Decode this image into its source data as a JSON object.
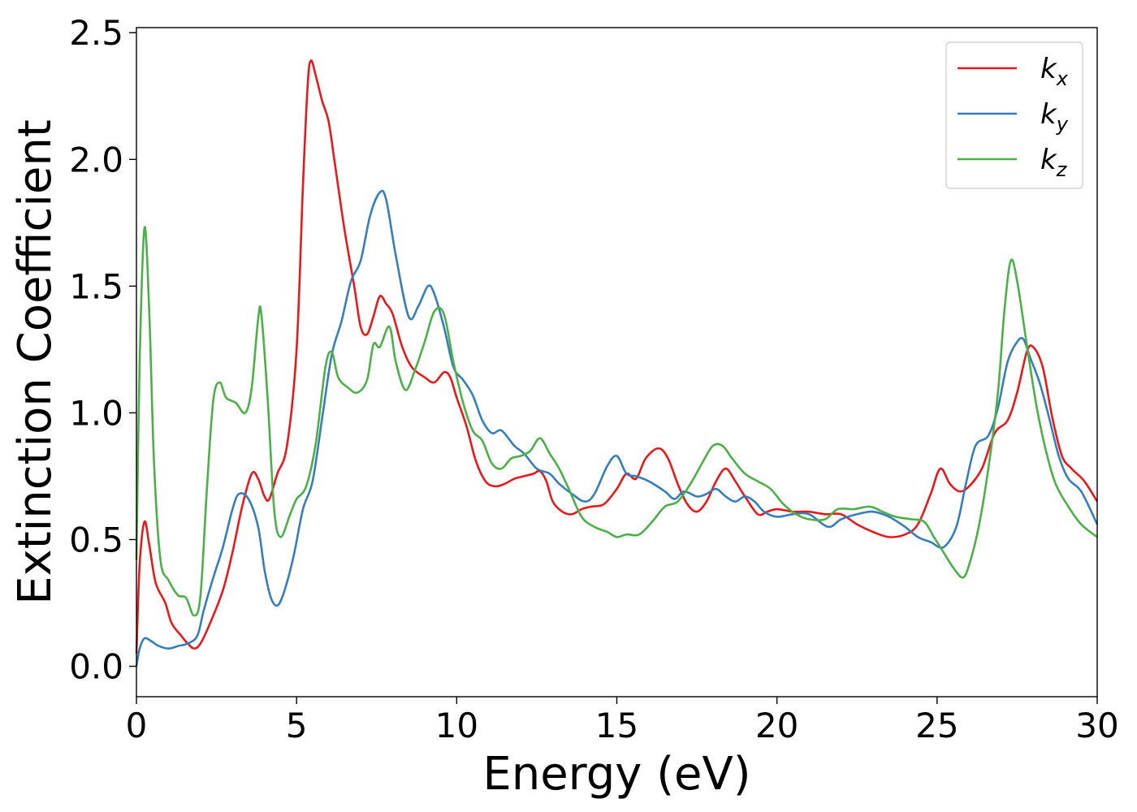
{
  "chart_data": {
    "type": "line",
    "xlabel": "Energy (eV)",
    "ylabel": "Extinction Coefficient",
    "xlim": [
      0,
      30
    ],
    "ylim": [
      -0.12,
      2.52
    ],
    "xticks": [
      0,
      5,
      10,
      15,
      20,
      25,
      30
    ],
    "xtick_labels": [
      "0",
      "5",
      "10",
      "15",
      "20",
      "25",
      "30"
    ],
    "yticks": [
      0.0,
      0.5,
      1.0,
      1.5,
      2.0,
      2.5
    ],
    "ytick_labels": [
      "0.0",
      "0.5",
      "1.0",
      "1.5",
      "2.0",
      "2.5"
    ],
    "grid": false,
    "legend_position": "top-right",
    "series": [
      {
        "name": "kx",
        "label_main": "k",
        "label_sub": "x",
        "color": "#e41a1c",
        "points": [
          [
            0,
            0.05
          ],
          [
            0.1,
            0.4
          ],
          [
            0.25,
            0.57
          ],
          [
            0.4,
            0.48
          ],
          [
            0.6,
            0.33
          ],
          [
            0.9,
            0.25
          ],
          [
            1.1,
            0.17
          ],
          [
            1.4,
            0.12
          ],
          [
            1.6,
            0.09
          ],
          [
            1.8,
            0.07
          ],
          [
            2.0,
            0.09
          ],
          [
            2.3,
            0.17
          ],
          [
            2.7,
            0.3
          ],
          [
            3.0,
            0.45
          ],
          [
            3.3,
            0.63
          ],
          [
            3.6,
            0.76
          ],
          [
            3.8,
            0.74
          ],
          [
            4.0,
            0.67
          ],
          [
            4.15,
            0.66
          ],
          [
            4.4,
            0.76
          ],
          [
            4.7,
            0.87
          ],
          [
            5.0,
            1.25
          ],
          [
            5.2,
            1.9
          ],
          [
            5.35,
            2.3
          ],
          [
            5.45,
            2.39
          ],
          [
            5.6,
            2.33
          ],
          [
            5.8,
            2.23
          ],
          [
            6.0,
            2.15
          ],
          [
            6.2,
            1.98
          ],
          [
            6.5,
            1.72
          ],
          [
            6.8,
            1.5
          ],
          [
            7.0,
            1.34
          ],
          [
            7.2,
            1.31
          ],
          [
            7.4,
            1.38
          ],
          [
            7.6,
            1.46
          ],
          [
            7.8,
            1.43
          ],
          [
            8.0,
            1.39
          ],
          [
            8.3,
            1.26
          ],
          [
            8.6,
            1.18
          ],
          [
            9.0,
            1.14
          ],
          [
            9.3,
            1.12
          ],
          [
            9.6,
            1.16
          ],
          [
            9.8,
            1.14
          ],
          [
            10.0,
            1.06
          ],
          [
            10.3,
            0.95
          ],
          [
            10.6,
            0.81
          ],
          [
            10.9,
            0.73
          ],
          [
            11.2,
            0.71
          ],
          [
            11.5,
            0.72
          ],
          [
            11.8,
            0.74
          ],
          [
            12.1,
            0.75
          ],
          [
            12.4,
            0.76
          ],
          [
            12.6,
            0.77
          ],
          [
            12.8,
            0.73
          ],
          [
            13.0,
            0.65
          ],
          [
            13.3,
            0.61
          ],
          [
            13.6,
            0.6
          ],
          [
            13.9,
            0.62
          ],
          [
            14.2,
            0.63
          ],
          [
            14.6,
            0.64
          ],
          [
            15.0,
            0.7
          ],
          [
            15.3,
            0.76
          ],
          [
            15.6,
            0.74
          ],
          [
            15.9,
            0.82
          ],
          [
            16.3,
            0.86
          ],
          [
            16.6,
            0.82
          ],
          [
            16.9,
            0.72
          ],
          [
            17.2,
            0.64
          ],
          [
            17.5,
            0.61
          ],
          [
            17.8,
            0.65
          ],
          [
            18.1,
            0.73
          ],
          [
            18.4,
            0.78
          ],
          [
            18.7,
            0.73
          ],
          [
            19.0,
            0.67
          ],
          [
            19.4,
            0.6
          ],
          [
            19.7,
            0.61
          ],
          [
            20.0,
            0.62
          ],
          [
            20.5,
            0.61
          ],
          [
            21.0,
            0.61
          ],
          [
            21.5,
            0.6
          ],
          [
            22.0,
            0.6
          ],
          [
            22.5,
            0.56
          ],
          [
            23.0,
            0.53
          ],
          [
            23.5,
            0.51
          ],
          [
            24.0,
            0.52
          ],
          [
            24.4,
            0.56
          ],
          [
            24.8,
            0.68
          ],
          [
            25.1,
            0.78
          ],
          [
            25.4,
            0.72
          ],
          [
            25.7,
            0.69
          ],
          [
            26.0,
            0.71
          ],
          [
            26.4,
            0.78
          ],
          [
            26.8,
            0.92
          ],
          [
            27.2,
            0.97
          ],
          [
            27.5,
            1.08
          ],
          [
            27.8,
            1.24
          ],
          [
            28.0,
            1.26
          ],
          [
            28.3,
            1.18
          ],
          [
            28.6,
            0.98
          ],
          [
            28.9,
            0.83
          ],
          [
            29.2,
            0.78
          ],
          [
            29.6,
            0.73
          ],
          [
            30.0,
            0.65
          ]
        ]
      },
      {
        "name": "ky",
        "label_main": "k",
        "label_sub": "y",
        "color": "#377eb8",
        "points": [
          [
            0,
            0.0
          ],
          [
            0.1,
            0.07
          ],
          [
            0.25,
            0.11
          ],
          [
            0.45,
            0.1
          ],
          [
            0.7,
            0.08
          ],
          [
            1.0,
            0.07
          ],
          [
            1.3,
            0.08
          ],
          [
            1.6,
            0.09
          ],
          [
            1.9,
            0.12
          ],
          [
            2.1,
            0.22
          ],
          [
            2.4,
            0.35
          ],
          [
            2.7,
            0.47
          ],
          [
            3.0,
            0.62
          ],
          [
            3.2,
            0.68
          ],
          [
            3.5,
            0.66
          ],
          [
            3.8,
            0.55
          ],
          [
            4.0,
            0.38
          ],
          [
            4.2,
            0.27
          ],
          [
            4.4,
            0.24
          ],
          [
            4.6,
            0.29
          ],
          [
            4.9,
            0.43
          ],
          [
            5.2,
            0.62
          ],
          [
            5.5,
            0.73
          ],
          [
            5.8,
            0.98
          ],
          [
            6.1,
            1.23
          ],
          [
            6.4,
            1.36
          ],
          [
            6.7,
            1.52
          ],
          [
            7.0,
            1.6
          ],
          [
            7.3,
            1.78
          ],
          [
            7.6,
            1.87
          ],
          [
            7.8,
            1.84
          ],
          [
            8.1,
            1.62
          ],
          [
            8.5,
            1.38
          ],
          [
            8.8,
            1.42
          ],
          [
            9.1,
            1.5
          ],
          [
            9.3,
            1.47
          ],
          [
            9.6,
            1.34
          ],
          [
            9.9,
            1.18
          ],
          [
            10.2,
            1.13
          ],
          [
            10.5,
            1.07
          ],
          [
            10.8,
            0.97
          ],
          [
            11.1,
            0.92
          ],
          [
            11.4,
            0.93
          ],
          [
            11.8,
            0.87
          ],
          [
            12.1,
            0.84
          ],
          [
            12.5,
            0.78
          ],
          [
            12.9,
            0.76
          ],
          [
            13.2,
            0.72
          ],
          [
            13.6,
            0.68
          ],
          [
            14.0,
            0.65
          ],
          [
            14.3,
            0.68
          ],
          [
            14.7,
            0.79
          ],
          [
            15.0,
            0.83
          ],
          [
            15.3,
            0.76
          ],
          [
            15.6,
            0.75
          ],
          [
            16.0,
            0.73
          ],
          [
            16.5,
            0.69
          ],
          [
            16.8,
            0.66
          ],
          [
            17.1,
            0.69
          ],
          [
            17.5,
            0.67
          ],
          [
            17.8,
            0.68
          ],
          [
            18.1,
            0.7
          ],
          [
            18.4,
            0.67
          ],
          [
            18.7,
            0.65
          ],
          [
            19.0,
            0.67
          ],
          [
            19.3,
            0.65
          ],
          [
            19.6,
            0.61
          ],
          [
            20.0,
            0.59
          ],
          [
            20.5,
            0.6
          ],
          [
            21.0,
            0.6
          ],
          [
            21.6,
            0.55
          ],
          [
            22.0,
            0.58
          ],
          [
            22.5,
            0.6
          ],
          [
            23.0,
            0.61
          ],
          [
            23.5,
            0.59
          ],
          [
            24.0,
            0.55
          ],
          [
            24.4,
            0.51
          ],
          [
            24.8,
            0.49
          ],
          [
            25.2,
            0.47
          ],
          [
            25.6,
            0.55
          ],
          [
            25.9,
            0.72
          ],
          [
            26.2,
            0.87
          ],
          [
            26.6,
            0.91
          ],
          [
            26.9,
            1.02
          ],
          [
            27.2,
            1.2
          ],
          [
            27.5,
            1.28
          ],
          [
            27.7,
            1.29
          ],
          [
            27.9,
            1.22
          ],
          [
            28.2,
            1.12
          ],
          [
            28.5,
            0.98
          ],
          [
            28.8,
            0.83
          ],
          [
            29.1,
            0.74
          ],
          [
            29.5,
            0.69
          ],
          [
            30.0,
            0.56
          ]
        ]
      },
      {
        "name": "kz",
        "label_main": "k",
        "label_sub": "z",
        "color": "#4daf4a",
        "points": [
          [
            0,
            0.42
          ],
          [
            0.1,
            1.2
          ],
          [
            0.25,
            1.73
          ],
          [
            0.4,
            1.4
          ],
          [
            0.55,
            0.8
          ],
          [
            0.75,
            0.42
          ],
          [
            1.0,
            0.34
          ],
          [
            1.3,
            0.28
          ],
          [
            1.55,
            0.27
          ],
          [
            1.8,
            0.2
          ],
          [
            2.0,
            0.28
          ],
          [
            2.2,
            0.7
          ],
          [
            2.4,
            1.05
          ],
          [
            2.6,
            1.12
          ],
          [
            2.8,
            1.06
          ],
          [
            3.1,
            1.04
          ],
          [
            3.4,
            1.0
          ],
          [
            3.6,
            1.1
          ],
          [
            3.8,
            1.37
          ],
          [
            3.9,
            1.39
          ],
          [
            4.1,
            1.05
          ],
          [
            4.3,
            0.62
          ],
          [
            4.5,
            0.51
          ],
          [
            4.8,
            0.6
          ],
          [
            5.0,
            0.66
          ],
          [
            5.3,
            0.71
          ],
          [
            5.6,
            0.88
          ],
          [
            5.9,
            1.18
          ],
          [
            6.1,
            1.24
          ],
          [
            6.3,
            1.14
          ],
          [
            6.6,
            1.1
          ],
          [
            6.9,
            1.08
          ],
          [
            7.2,
            1.13
          ],
          [
            7.4,
            1.27
          ],
          [
            7.6,
            1.26
          ],
          [
            7.9,
            1.34
          ],
          [
            8.1,
            1.2
          ],
          [
            8.4,
            1.09
          ],
          [
            8.7,
            1.17
          ],
          [
            9.0,
            1.28
          ],
          [
            9.3,
            1.4
          ],
          [
            9.6,
            1.39
          ],
          [
            9.9,
            1.2
          ],
          [
            10.2,
            1.04
          ],
          [
            10.5,
            0.93
          ],
          [
            10.8,
            0.89
          ],
          [
            11.1,
            0.8
          ],
          [
            11.4,
            0.78
          ],
          [
            11.7,
            0.82
          ],
          [
            12.0,
            0.83
          ],
          [
            12.3,
            0.85
          ],
          [
            12.6,
            0.9
          ],
          [
            12.9,
            0.84
          ],
          [
            13.2,
            0.78
          ],
          [
            13.5,
            0.7
          ],
          [
            13.9,
            0.59
          ],
          [
            14.3,
            0.55
          ],
          [
            14.7,
            0.53
          ],
          [
            15.0,
            0.51
          ],
          [
            15.3,
            0.52
          ],
          [
            15.7,
            0.52
          ],
          [
            16.1,
            0.57
          ],
          [
            16.5,
            0.63
          ],
          [
            16.9,
            0.65
          ],
          [
            17.3,
            0.72
          ],
          [
            17.7,
            0.81
          ],
          [
            18.0,
            0.87
          ],
          [
            18.3,
            0.87
          ],
          [
            18.6,
            0.82
          ],
          [
            19.0,
            0.76
          ],
          [
            19.4,
            0.73
          ],
          [
            19.8,
            0.7
          ],
          [
            20.2,
            0.64
          ],
          [
            20.6,
            0.6
          ],
          [
            21.0,
            0.58
          ],
          [
            21.5,
            0.58
          ],
          [
            21.9,
            0.62
          ],
          [
            22.4,
            0.62
          ],
          [
            22.9,
            0.63
          ],
          [
            23.3,
            0.61
          ],
          [
            23.7,
            0.59
          ],
          [
            24.2,
            0.58
          ],
          [
            24.6,
            0.57
          ],
          [
            24.9,
            0.51
          ],
          [
            25.2,
            0.45
          ],
          [
            25.5,
            0.39
          ],
          [
            25.8,
            0.35
          ],
          [
            26.0,
            0.4
          ],
          [
            26.3,
            0.55
          ],
          [
            26.6,
            0.78
          ],
          [
            26.9,
            1.08
          ],
          [
            27.1,
            1.4
          ],
          [
            27.3,
            1.6
          ],
          [
            27.5,
            1.52
          ],
          [
            27.8,
            1.27
          ],
          [
            28.1,
            1.03
          ],
          [
            28.4,
            0.85
          ],
          [
            28.7,
            0.72
          ],
          [
            29.1,
            0.63
          ],
          [
            29.5,
            0.56
          ],
          [
            30.0,
            0.51
          ]
        ]
      }
    ]
  }
}
